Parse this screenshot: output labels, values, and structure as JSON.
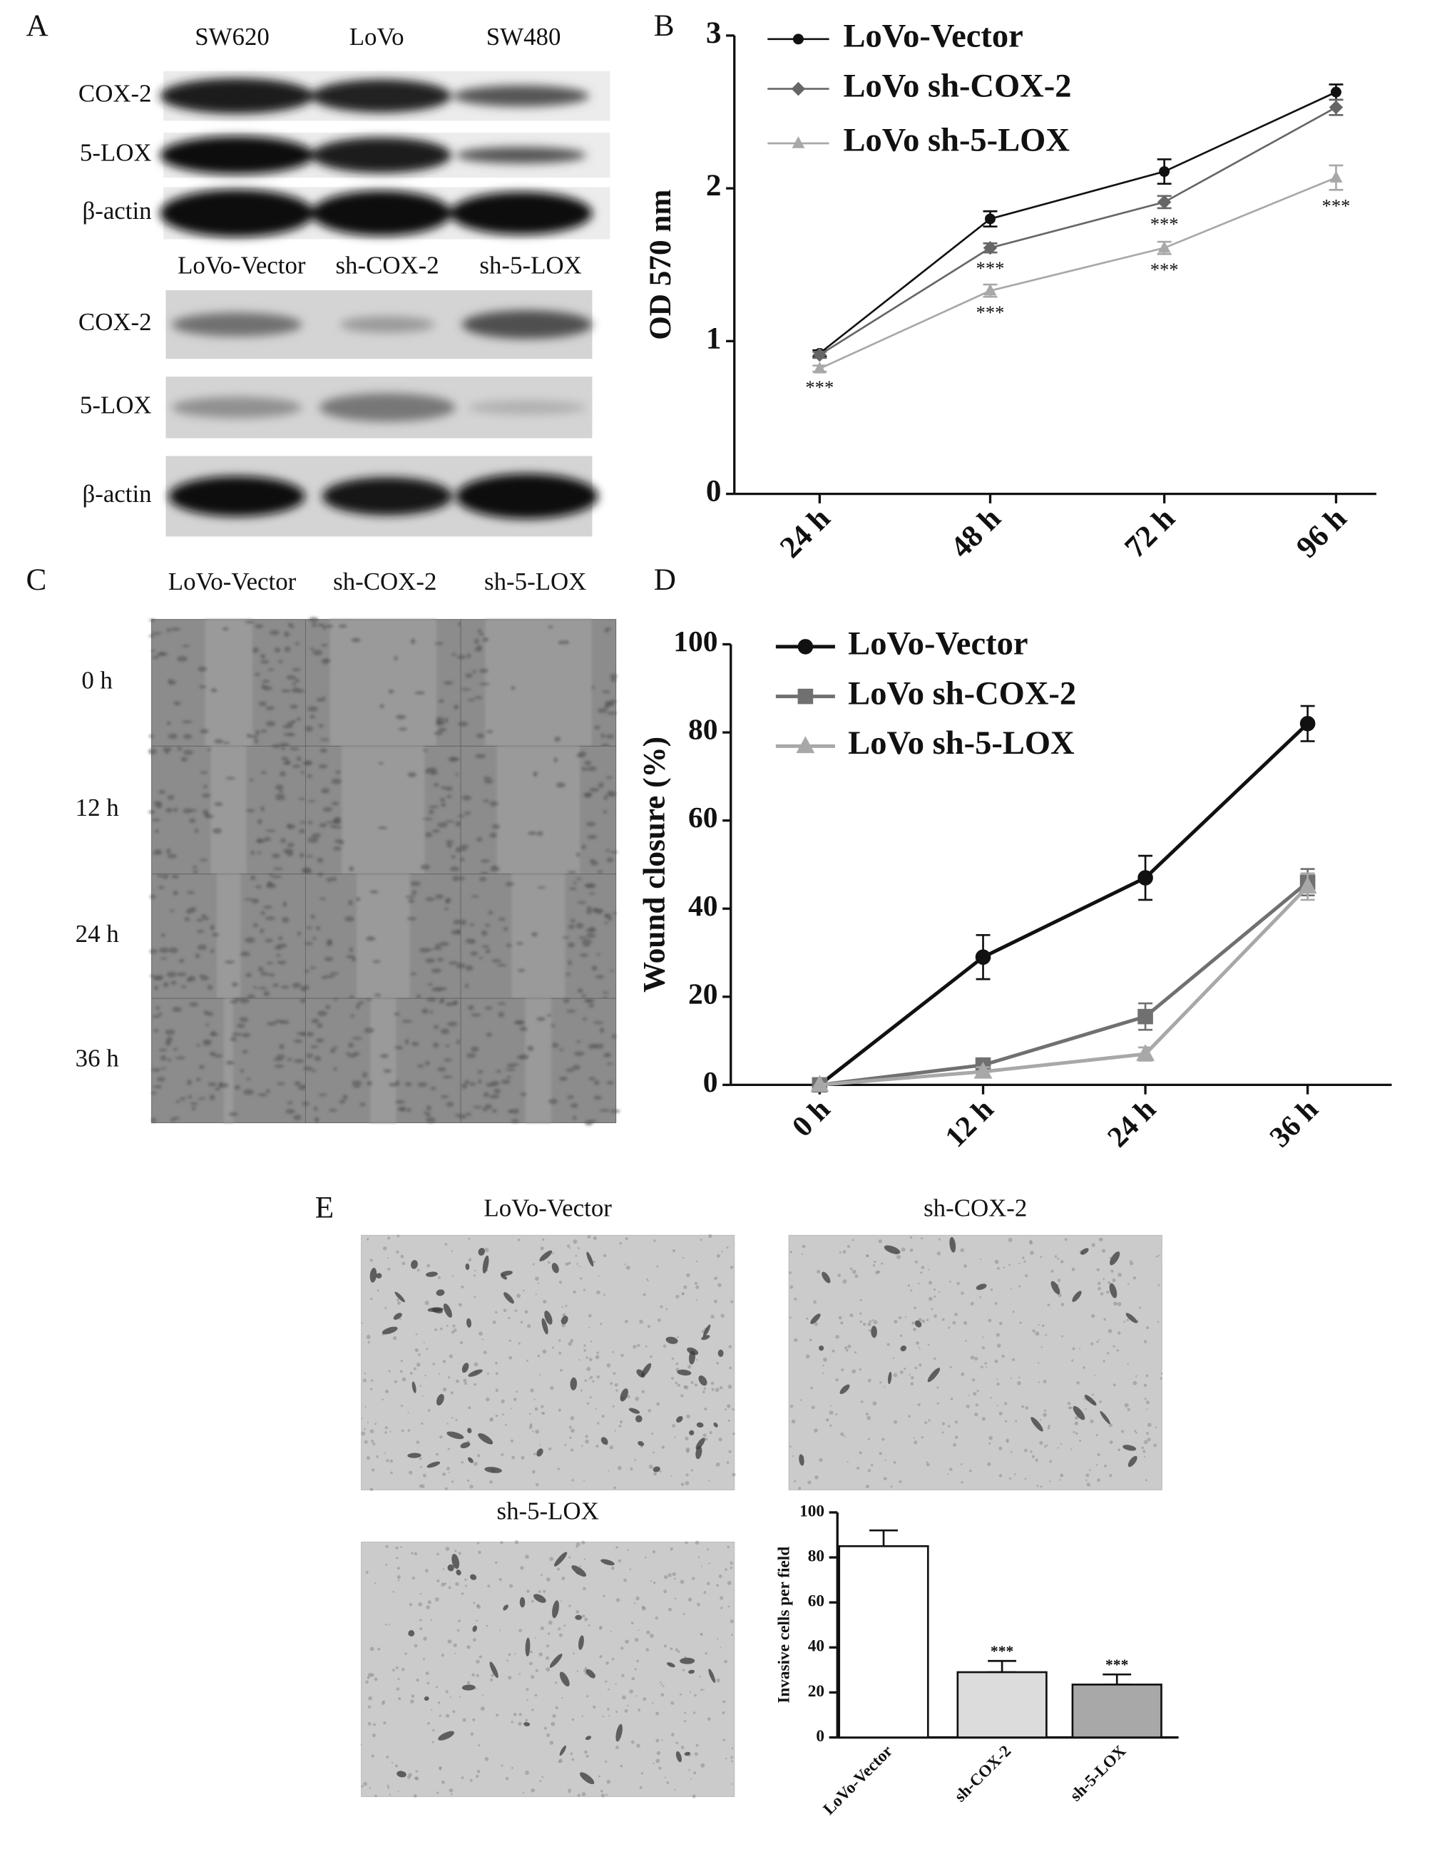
{
  "panel_labels": [
    "A",
    "B",
    "C",
    "D",
    "E"
  ],
  "blot_1": {
    "columns": [
      "SW620",
      "LoVo",
      "SW480"
    ],
    "rows": [
      "COX-2",
      "5-LOX",
      "β-actin"
    ]
  },
  "blot_2": {
    "columns": [
      "LoVo-Vector",
      "sh-COX-2",
      "sh-5-LOX"
    ],
    "rows": [
      "COX-2",
      "5-LOX",
      "β-actin"
    ]
  },
  "wound_assay": {
    "columns": [
      "LoVo-Vector",
      "sh-COX-2",
      "sh-5-LOX"
    ],
    "rows": [
      "0 h",
      "12 h",
      "24 h",
      "36 h"
    ]
  },
  "invasion_images": [
    "LoVo-Vector",
    "sh-COX-2",
    "sh-5-LOX"
  ],
  "chart_data": [
    {
      "type": "line",
      "y_label": "OD 570 nm",
      "categories": [
        "24 h",
        "48 h",
        "72 h",
        "96 h"
      ],
      "ylim": [
        0,
        3
      ],
      "yticks": [
        0,
        1,
        2,
        3
      ],
      "series": [
        {
          "name": "LoVo-Vector",
          "color": "#111111",
          "marker": "circle",
          "values": [
            0.92,
            1.8,
            2.11,
            2.63
          ],
          "errors": [
            0.02,
            0.05,
            0.08,
            0.05
          ]
        },
        {
          "name": "LoVo sh-COX-2",
          "color": "#666666",
          "marker": "diamond",
          "values": [
            0.91,
            1.61,
            1.91,
            2.53
          ],
          "errors": [
            0.02,
            0.03,
            0.04,
            0.05
          ]
        },
        {
          "name": "LoVo sh-5-LOX",
          "color": "#a8a8a8",
          "marker": "triangle",
          "values": [
            0.82,
            1.33,
            1.61,
            2.07
          ],
          "errors": [
            0.02,
            0.04,
            0.04,
            0.08
          ]
        }
      ],
      "annotations": [
        "***",
        "***",
        "***",
        "***",
        "***",
        "***"
      ]
    },
    {
      "type": "line",
      "y_label": "Wound closure (%)",
      "categories": [
        "0 h",
        "12 h",
        "24 h",
        "36 h"
      ],
      "ylim": [
        0,
        100
      ],
      "yticks": [
        0,
        20,
        40,
        60,
        80,
        100
      ],
      "series": [
        {
          "name": "LoVo-Vector",
          "color": "#111111",
          "marker": "circle",
          "values": [
            0,
            29,
            47,
            82
          ],
          "errors": [
            0,
            5,
            5,
            4
          ]
        },
        {
          "name": "LoVo sh-COX-2",
          "color": "#707070",
          "marker": "square",
          "values": [
            0,
            4.5,
            15.5,
            46
          ],
          "errors": [
            0,
            1,
            3,
            3
          ]
        },
        {
          "name": "LoVo sh-5-LOX",
          "color": "#a8a8a8",
          "marker": "triangle",
          "values": [
            0,
            3,
            7,
            45
          ],
          "errors": [
            0,
            1,
            1.5,
            3
          ]
        }
      ]
    },
    {
      "type": "bar",
      "y_label": "Invasive cells per field",
      "categories": [
        "LoVo-Vector",
        "sh-COX-2",
        "sh-5-LOX"
      ],
      "values": [
        85,
        29,
        23.5
      ],
      "errors": [
        7,
        5,
        4.5
      ],
      "colors": [
        "#ffffff",
        "#dcdcdc",
        "#a8a8a8"
      ],
      "ylim": [
        0,
        100
      ],
      "yticks": [
        0,
        20,
        40,
        60,
        80,
        100
      ],
      "annotations": [
        "***",
        "***"
      ]
    }
  ]
}
